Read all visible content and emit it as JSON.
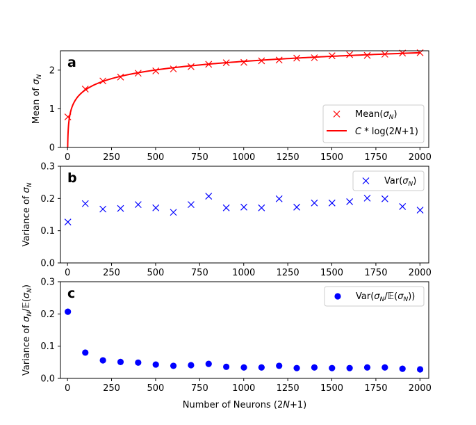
{
  "chart_data": [
    {
      "type": "scatter+line",
      "panel": "a",
      "ylabel": "Mean of σ_N",
      "xlabel": "",
      "xlim": [
        -40,
        2050
      ],
      "ylim": [
        0,
        2.5
      ],
      "yticks": [
        "0",
        "1",
        "2"
      ],
      "ytick_values": [
        0,
        1,
        2
      ],
      "xticks": [
        "0",
        "250",
        "500",
        "750",
        "1000",
        "1250",
        "1500",
        "1750",
        "2000"
      ],
      "xtick_values": [
        0,
        250,
        500,
        750,
        1000,
        1250,
        1500,
        1750,
        2000
      ],
      "color": "#ff0000",
      "legend_position": "bottom-right",
      "series": [
        {
          "name": "Mean(σ_N)",
          "marker": "x",
          "color": "#ff0000",
          "x": [
            2,
            101,
            201,
            301,
            401,
            501,
            601,
            701,
            801,
            901,
            1001,
            1101,
            1201,
            1301,
            1401,
            1501,
            1601,
            1701,
            1801,
            1901,
            2001
          ],
          "y": [
            0.79,
            1.51,
            1.72,
            1.82,
            1.92,
            1.98,
            2.03,
            2.09,
            2.15,
            2.19,
            2.2,
            2.24,
            2.26,
            2.31,
            2.32,
            2.37,
            2.4,
            2.38,
            2.41,
            2.44,
            2.45
          ]
        },
        {
          "name": "C * log(2N+1)",
          "line": "solid",
          "color": "#ff0000",
          "curve_coefficient_C": 0.3223
        }
      ]
    },
    {
      "type": "scatter",
      "panel": "b",
      "ylabel": "Variance of σ_N",
      "xlabel": "",
      "xlim": [
        -40,
        2050
      ],
      "ylim": [
        0,
        0.3
      ],
      "yticks": [
        "0.0",
        "0.1",
        "0.2",
        "0.3"
      ],
      "ytick_values": [
        0,
        0.1,
        0.2,
        0.3
      ],
      "xticks": [
        "0",
        "250",
        "500",
        "750",
        "1000",
        "1250",
        "1500",
        "1750",
        "2000"
      ],
      "xtick_values": [
        0,
        250,
        500,
        750,
        1000,
        1250,
        1500,
        1750,
        2000
      ],
      "legend_position": "top-right",
      "series": [
        {
          "name": "Var(σ_N)",
          "marker": "x",
          "color": "#0000ff",
          "x": [
            2,
            101,
            201,
            301,
            401,
            501,
            601,
            701,
            801,
            901,
            1001,
            1101,
            1201,
            1301,
            1401,
            1501,
            1601,
            1701,
            1801,
            1901,
            2001
          ],
          "y": [
            0.127,
            0.184,
            0.167,
            0.169,
            0.181,
            0.171,
            0.157,
            0.181,
            0.207,
            0.171,
            0.173,
            0.171,
            0.199,
            0.173,
            0.186,
            0.186,
            0.19,
            0.201,
            0.199,
            0.175,
            0.164
          ]
        }
      ]
    },
    {
      "type": "scatter",
      "panel": "c",
      "ylabel": "Variance of σ_N/𝔼(σ_N)",
      "xlabel": "Number of Neurons (2N+1)",
      "xlim": [
        -40,
        2050
      ],
      "ylim": [
        0,
        0.3
      ],
      "yticks": [
        "0.0",
        "0.1",
        "0.2",
        "0.3"
      ],
      "ytick_values": [
        0,
        0.1,
        0.2,
        0.3
      ],
      "xticks": [
        "0",
        "250",
        "500",
        "750",
        "1000",
        "1250",
        "1500",
        "1750",
        "2000"
      ],
      "xtick_values": [
        0,
        250,
        500,
        750,
        1000,
        1250,
        1500,
        1750,
        2000
      ],
      "legend_position": "top-right",
      "series": [
        {
          "name": "Var(σ_N/𝔼(σ_N))",
          "marker": "o",
          "color": "#0000ff",
          "x": [
            2,
            101,
            201,
            301,
            401,
            501,
            601,
            701,
            801,
            901,
            1001,
            1101,
            1201,
            1301,
            1401,
            1501,
            1601,
            1701,
            1801,
            1901,
            2001
          ],
          "y": [
            0.207,
            0.08,
            0.056,
            0.051,
            0.049,
            0.043,
            0.039,
            0.041,
            0.045,
            0.036,
            0.034,
            0.034,
            0.039,
            0.032,
            0.034,
            0.032,
            0.032,
            0.034,
            0.034,
            0.03,
            0.028
          ]
        }
      ]
    }
  ]
}
